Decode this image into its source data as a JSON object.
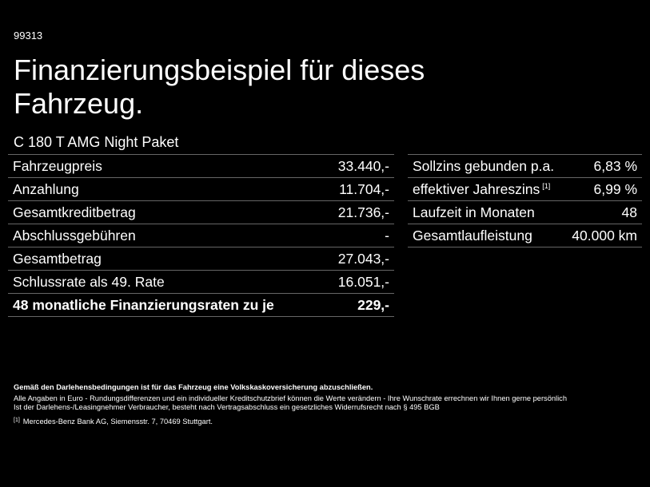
{
  "id": "99313",
  "title": "Finanzierungsbeispiel für dieses Fahrzeug.",
  "model": "C 180 T AMG Night Paket",
  "left_table": {
    "rows": [
      [
        "Fahrzeugpreis",
        "33.440,-"
      ],
      [
        "Anzahlung",
        "11.704,-"
      ],
      [
        "Gesamtkreditbetrag",
        "21.736,-"
      ],
      [
        "Abschlussgebühren",
        "-"
      ],
      [
        "Gesamtbetrag",
        "27.043,-"
      ],
      [
        "Schlussrate als 49. Rate",
        "16.051,-"
      ],
      [
        "48 monatliche Finanzierungsraten zu je",
        "229,-"
      ]
    ]
  },
  "right_table": {
    "rows": [
      [
        "Sollzins gebunden p.a.",
        "6,83 %"
      ],
      [
        "effektiver Jahreszins",
        "6,99 %"
      ],
      [
        "Laufzeit in Monaten",
        "48"
      ],
      [
        "Gesamtlaufleistung",
        "40.000 km"
      ]
    ],
    "note_marker": "[1]"
  },
  "notes": {
    "bold": "Gemäß den Darlehensbedingungen ist für das Fahrzeug eine Volkskaskoversicherung abzuschließen.",
    "lines": [
      "Alle Angaben in Euro - Rundungsdifferenzen und ein individueller Kreditschutzbrief können die Werte verändern - Ihre Wunschrate errechnen wir Ihnen gerne persönlich",
      "Ist der Darlehens-/Leasingnehmer Verbraucher, besteht nach Vertragsabschluss ein gesetzliches Widerrufsrecht nach § 495 BGB"
    ],
    "footnote": {
      "marker": "[1]",
      "text": "Mercedes-Benz Bank AG, Siemensstr. 7, 70469 Stuttgart."
    }
  }
}
